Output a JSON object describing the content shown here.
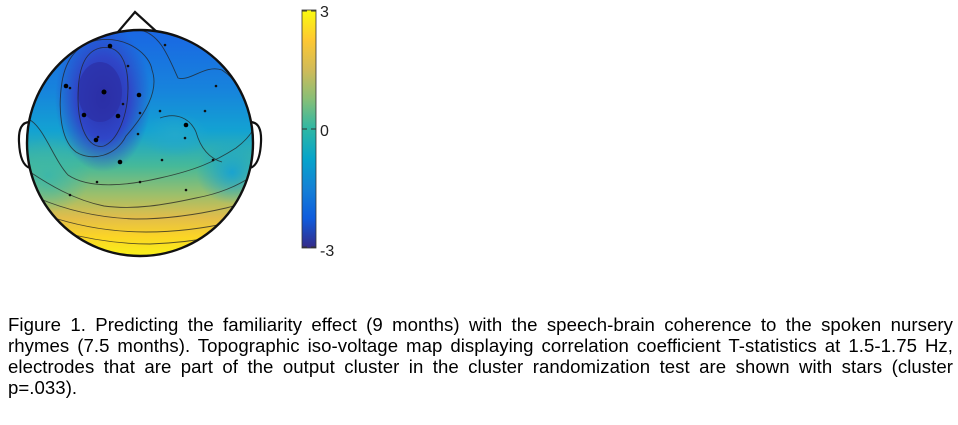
{
  "figure": {
    "colorbar": {
      "ticks": [
        {
          "value": 3,
          "label": "3"
        },
        {
          "value": 0,
          "label": "0"
        },
        {
          "value": -3,
          "label": "-3"
        }
      ],
      "range": [
        -3,
        3
      ],
      "colormap": "parula",
      "colors": [
        "#352a87",
        "#0f5cdd",
        "#1481d6",
        "#06a4ca",
        "#2eb7a4",
        "#87bf77",
        "#d1bb59",
        "#fec832",
        "#f9fb0e"
      ]
    },
    "map": {
      "type": "topographic iso-voltage map",
      "electrode_marker": "dot",
      "cluster_marker": "star",
      "outline_color": "#111111"
    },
    "caption": "Figure 1. Predicting the familiarity effect (9 months) with the speech-brain coherence to the spoken nursery rhymes (7.5 months). Topographic iso-voltage map displaying correlation coefficient T-statistics at 1.5-1.75 Hz, electrodes that are part of the output cluster in the cluster randomization test are shown with stars (cluster p=.033)."
  }
}
